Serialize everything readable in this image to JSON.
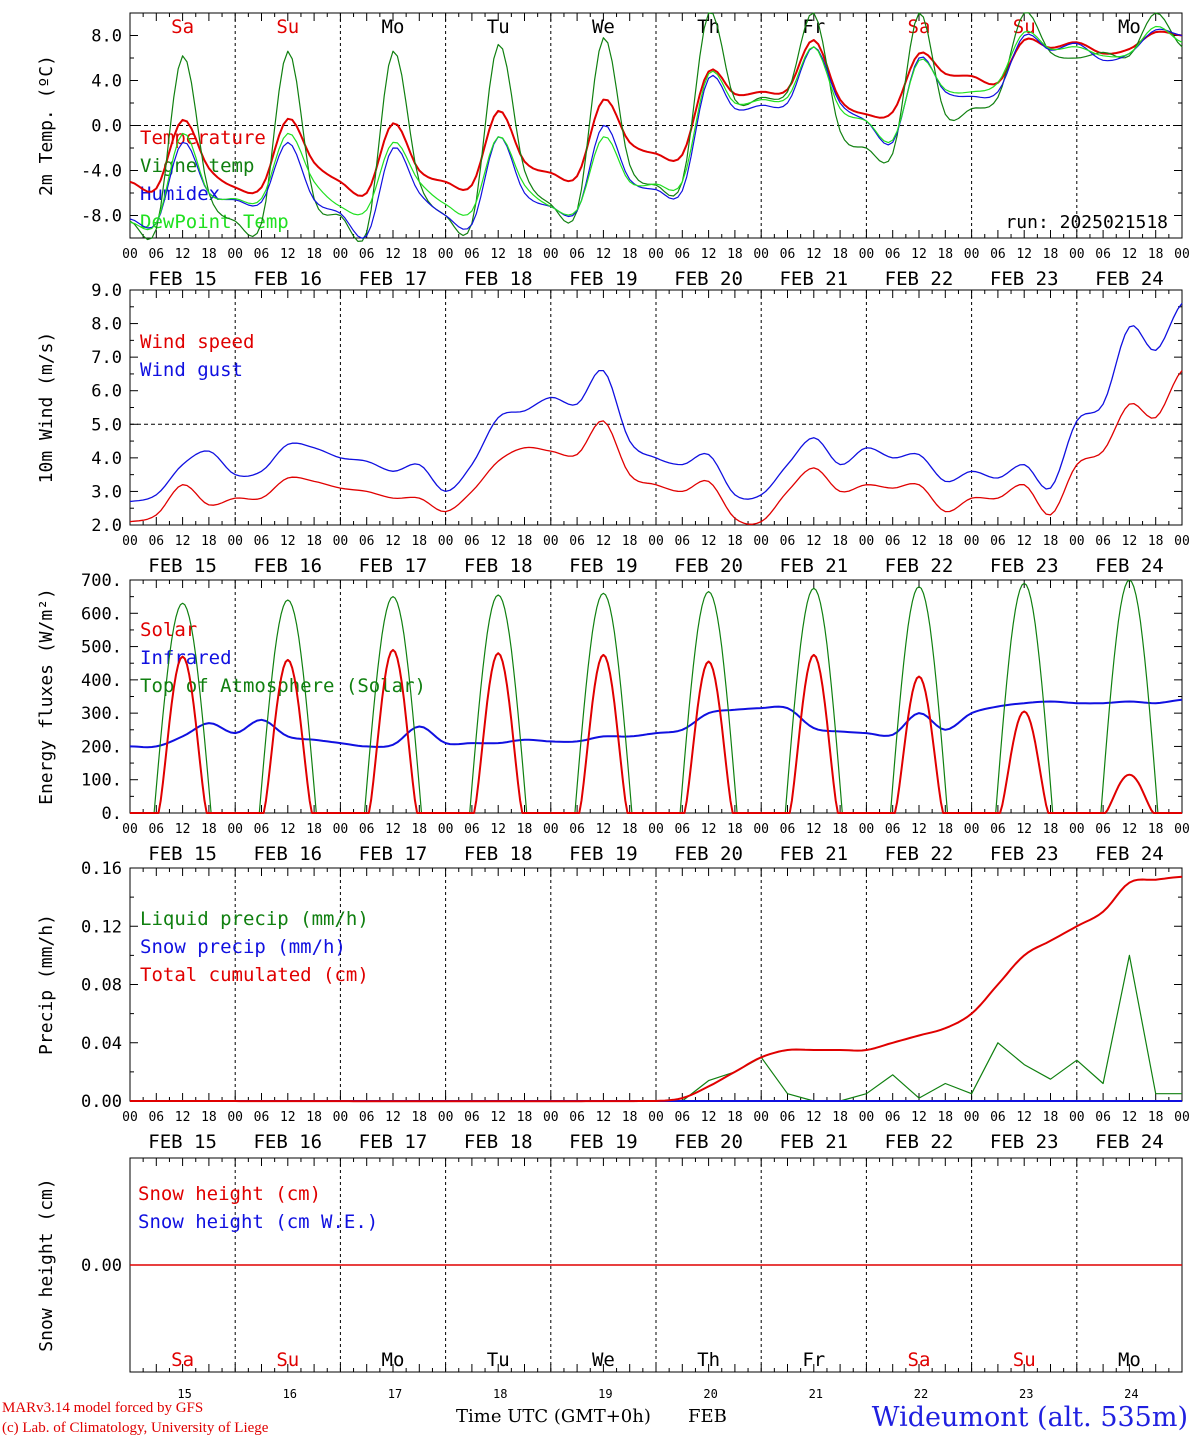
{
  "run_label": "run: 2025021518",
  "days": {
    "weekday_abbr": [
      "Sa",
      "Su",
      "Mo",
      "Tu",
      "We",
      "Th",
      "Fr",
      "Sa",
      "Su",
      "Mo"
    ],
    "weekday_colors": [
      "#e00000",
      "#e00000",
      "#000000",
      "#000000",
      "#000000",
      "#000000",
      "#000000",
      "#e00000",
      "#e00000",
      "#000000"
    ],
    "date_labels": [
      "FEB 15",
      "FEB 16",
      "FEB 17",
      "FEB 18",
      "FEB 19",
      "FEB 20",
      "FEB 21",
      "FEB 22",
      "FEB 23",
      "FEB 24"
    ],
    "day_numbers": [
      "15",
      "16",
      "17",
      "18",
      "19",
      "20",
      "21",
      "22",
      "23",
      "24"
    ],
    "hour_ticks": [
      "00",
      "06",
      "12",
      "18"
    ],
    "final_tick": "00"
  },
  "footer": {
    "credit_line1": "MARv3.14 model forced by GFS",
    "credit_line2": "(c) Lab. of Climatology, University of Liege",
    "axis_title": "Time UTC (GMT+0h)",
    "month": "FEB",
    "station": "Wideumont (alt. 535m)"
  },
  "colors": {
    "red": "#e00000",
    "green": "#108010",
    "blue": "#1010e0",
    "lightgreen": "#20e020",
    "grid": "#000000"
  },
  "chart_data": [
    {
      "type": "line",
      "ylabel": "2m Temp. (ºC)",
      "ylim": [
        -10,
        10
      ],
      "yticks": [
        8.0,
        4.0,
        0.0,
        -4.0,
        -8.0
      ],
      "ytick_labels": [
        "8.0",
        "4.0",
        "0.0",
        "-4.0",
        "-8.0"
      ],
      "dashed_at": 0.0,
      "legend": [
        "Temperature",
        "Vigne temp",
        "Humidex",
        "DewPoint Temp"
      ],
      "legend_colors": [
        "#e00000",
        "#108010",
        "#1010e0",
        "#20e020"
      ],
      "x_hours": [
        0,
        6,
        12,
        18,
        24,
        30,
        36,
        42,
        48,
        54,
        60,
        66,
        72,
        78,
        84,
        90,
        96,
        102,
        108,
        114,
        120,
        126,
        132,
        138,
        144,
        150,
        156,
        162,
        168,
        174,
        180,
        186,
        192,
        198,
        204,
        210,
        216,
        222,
        228,
        234,
        240
      ],
      "series": [
        {
          "name": "Temperature",
          "color": "#e00000",
          "values": [
            -5.0,
            -5.6,
            0.5,
            -3.8,
            -5.5,
            -5.5,
            0.6,
            -3.3,
            -5.0,
            -6.0,
            0.2,
            -4.0,
            -5.0,
            -5.3,
            1.3,
            -3.2,
            -4.2,
            -4.5,
            2.3,
            -1.5,
            -2.5,
            -2.6,
            4.8,
            2.8,
            3.0,
            3.2,
            7.6,
            2.3,
            1.0,
            1.2,
            6.4,
            4.6,
            4.4,
            3.8,
            7.6,
            6.9,
            7.4,
            6.4,
            6.8,
            8.3,
            8.0
          ]
        },
        {
          "name": "Vigne temp",
          "color": "#108010",
          "values": [
            -8.5,
            -9.2,
            6.2,
            -6.0,
            -8.5,
            -8.7,
            6.6,
            -6.5,
            -8.0,
            -9.5,
            6.6,
            -5.0,
            -8.0,
            -8.7,
            7.2,
            -4.0,
            -7.0,
            -7.6,
            7.8,
            -3.5,
            -5.3,
            -5.0,
            11.0,
            2.3,
            2.5,
            3.0,
            12.0,
            -0.5,
            -2.0,
            -2.5,
            12.0,
            1.0,
            1.5,
            2.5,
            10.0,
            6.5,
            6.0,
            6.5,
            6.2,
            10.0,
            7.0
          ]
        },
        {
          "name": "Humidex",
          "color": "#1010e0",
          "values": [
            -8.3,
            -8.7,
            -1.5,
            -6.0,
            -6.6,
            -6.8,
            -1.5,
            -6.6,
            -7.8,
            -9.8,
            -2.0,
            -6.0,
            -8.0,
            -8.8,
            -1.0,
            -6.0,
            -7.2,
            -7.6,
            0.0,
            -4.8,
            -5.7,
            -5.8,
            4.2,
            1.5,
            1.8,
            2.0,
            7.0,
            2.0,
            0.4,
            -1.5,
            6.0,
            3.0,
            2.6,
            3.0,
            8.0,
            6.7,
            7.3,
            5.8,
            6.4,
            8.5,
            8.0
          ]
        },
        {
          "name": "DewPoint Temp",
          "color": "#20e020",
          "values": [
            -8.6,
            -8.7,
            -0.7,
            -6.0,
            -6.5,
            -6.5,
            -0.7,
            -5.0,
            -7.2,
            -7.5,
            -1.5,
            -5.0,
            -7.0,
            -7.6,
            -1.0,
            -5.3,
            -7.2,
            -7.5,
            -1.0,
            -5.0,
            -5.2,
            -5.0,
            4.6,
            2.0,
            2.3,
            2.5,
            7.0,
            1.5,
            0.4,
            -1.3,
            5.8,
            3.2,
            3.0,
            3.8,
            8.3,
            6.8,
            7.0,
            6.2,
            6.4,
            8.8,
            7.4
          ]
        }
      ]
    },
    {
      "type": "line",
      "ylabel": "10m Wind (m/s)",
      "ylim": [
        2.0,
        9.0
      ],
      "yticks": [
        9.0,
        8.0,
        7.0,
        6.0,
        5.0,
        4.0,
        3.0,
        2.0
      ],
      "ytick_labels": [
        "9.0",
        "8.0",
        "7.0",
        "6.0",
        "5.0",
        "4.0",
        "3.0",
        "2.0"
      ],
      "dashed_at": 5.0,
      "legend": [
        "Wind speed",
        "Wind gust"
      ],
      "legend_colors": [
        "#e00000",
        "#1010e0"
      ],
      "x_hours": [
        0,
        6,
        12,
        18,
        24,
        30,
        36,
        42,
        48,
        54,
        60,
        66,
        72,
        78,
        84,
        90,
        96,
        102,
        108,
        114,
        120,
        126,
        132,
        138,
        144,
        150,
        156,
        162,
        168,
        174,
        180,
        186,
        192,
        198,
        204,
        210,
        216,
        222,
        228,
        234,
        240
      ],
      "series": [
        {
          "name": "Wind speed",
          "color": "#e00000",
          "values": [
            2.1,
            2.3,
            3.2,
            2.6,
            2.8,
            2.8,
            3.4,
            3.3,
            3.1,
            3.0,
            2.8,
            2.8,
            2.4,
            3.0,
            3.9,
            4.3,
            4.2,
            4.1,
            5.1,
            3.5,
            3.2,
            3.0,
            3.3,
            2.2,
            2.1,
            3.0,
            3.7,
            3.0,
            3.2,
            3.1,
            3.2,
            2.4,
            2.8,
            2.8,
            3.2,
            2.3,
            3.8,
            4.2,
            5.6,
            5.2,
            6.6
          ]
        },
        {
          "name": "Wind gust",
          "color": "#1010e0",
          "values": [
            2.7,
            2.9,
            3.8,
            4.2,
            3.5,
            3.6,
            4.4,
            4.3,
            4.0,
            3.9,
            3.6,
            3.8,
            3.0,
            3.8,
            5.2,
            5.4,
            5.8,
            5.6,
            6.6,
            4.5,
            4.0,
            3.8,
            4.1,
            2.9,
            2.9,
            3.8,
            4.6,
            3.8,
            4.3,
            4.0,
            4.1,
            3.3,
            3.6,
            3.4,
            3.8,
            3.1,
            5.1,
            5.6,
            7.9,
            7.2,
            8.6
          ]
        }
      ]
    },
    {
      "type": "line",
      "ylabel": "Energy fluxes (W/m²)",
      "ylim": [
        0,
        700
      ],
      "yticks": [
        700,
        600,
        500,
        400,
        300,
        200,
        100,
        0
      ],
      "ytick_labels": [
        "700.",
        "600.",
        "500.",
        "400.",
        "300.",
        "200.",
        "100.",
        "0."
      ],
      "legend": [
        "Solar",
        "Infrared",
        "Top of Atmosphere (Solar)"
      ],
      "legend_colors": [
        "#e00000",
        "#1010e0",
        "#108010"
      ],
      "infrared": {
        "x_hours": [
          0,
          6,
          12,
          18,
          24,
          30,
          36,
          42,
          48,
          54,
          60,
          66,
          72,
          78,
          84,
          90,
          96,
          102,
          108,
          114,
          120,
          126,
          132,
          138,
          144,
          150,
          156,
          162,
          168,
          174,
          180,
          186,
          192,
          198,
          204,
          210,
          216,
          222,
          228,
          234,
          240
        ],
        "values": [
          200,
          200,
          230,
          270,
          240,
          280,
          230,
          220,
          210,
          200,
          205,
          260,
          210,
          210,
          210,
          220,
          215,
          215,
          230,
          230,
          240,
          250,
          300,
          310,
          315,
          315,
          255,
          245,
          240,
          235,
          300,
          250,
          300,
          320,
          330,
          335,
          330,
          330,
          335,
          330,
          340
        ]
      },
      "solar_peaks": [
        470,
        460,
        490,
        480,
        475,
        455,
        475,
        410,
        305,
        115
      ],
      "toa_peaks": [
        630,
        640,
        650,
        655,
        660,
        665,
        675,
        680,
        690,
        700
      ]
    },
    {
      "type": "line",
      "ylabel": "Precip (mm/h)",
      "ylim": [
        0,
        0.16
      ],
      "yticks": [
        0.16,
        0.12,
        0.08,
        0.04,
        0.0
      ],
      "ytick_labels": [
        "0.16",
        "0.12",
        "0.08",
        "0.04",
        "0.00"
      ],
      "legend": [
        "Liquid precip (mm/h)",
        "Snow precip (mm/h)",
        "Total cumulated (cm)"
      ],
      "legend_colors": [
        "#108010",
        "#1010e0",
        "#e00000"
      ],
      "liquid": {
        "x_hours": [
          0,
          108,
          120,
          126,
          132,
          138,
          144,
          150,
          156,
          162,
          168,
          174,
          180,
          186,
          192,
          198,
          204,
          210,
          216,
          222,
          228,
          234,
          240
        ],
        "values": [
          0,
          0,
          0,
          0,
          0.014,
          0.02,
          0.03,
          0.005,
          0,
          0,
          0.005,
          0.018,
          0.002,
          0.012,
          0.005,
          0.04,
          0.025,
          0.015,
          0.028,
          0.012,
          0.1,
          0.005,
          0.005
        ]
      },
      "cumulated": {
        "x_hours": [
          0,
          120,
          126,
          132,
          138,
          144,
          150,
          156,
          162,
          168,
          174,
          180,
          186,
          192,
          198,
          204,
          210,
          216,
          222,
          228,
          234,
          240
        ],
        "values": [
          0,
          0,
          0.002,
          0.01,
          0.02,
          0.03,
          0.035,
          0.035,
          0.035,
          0.035,
          0.04,
          0.045,
          0.05,
          0.06,
          0.08,
          0.1,
          0.11,
          0.12,
          0.13,
          0.15,
          0.152,
          0.154
        ]
      }
    },
    {
      "type": "line",
      "ylabel": "Snow height (cm)",
      "ylim": [
        -1,
        1
      ],
      "yticks": [
        0.0
      ],
      "ytick_labels": [
        "0.00"
      ],
      "legend": [
        "Snow height (cm)",
        "Snow height (cm W.E.)"
      ],
      "legend_colors": [
        "#e00000",
        "#1010e0"
      ],
      "series": [
        {
          "name": "Snow height (cm)",
          "color": "#e00000",
          "values": [
            0,
            0
          ]
        }
      ]
    }
  ]
}
